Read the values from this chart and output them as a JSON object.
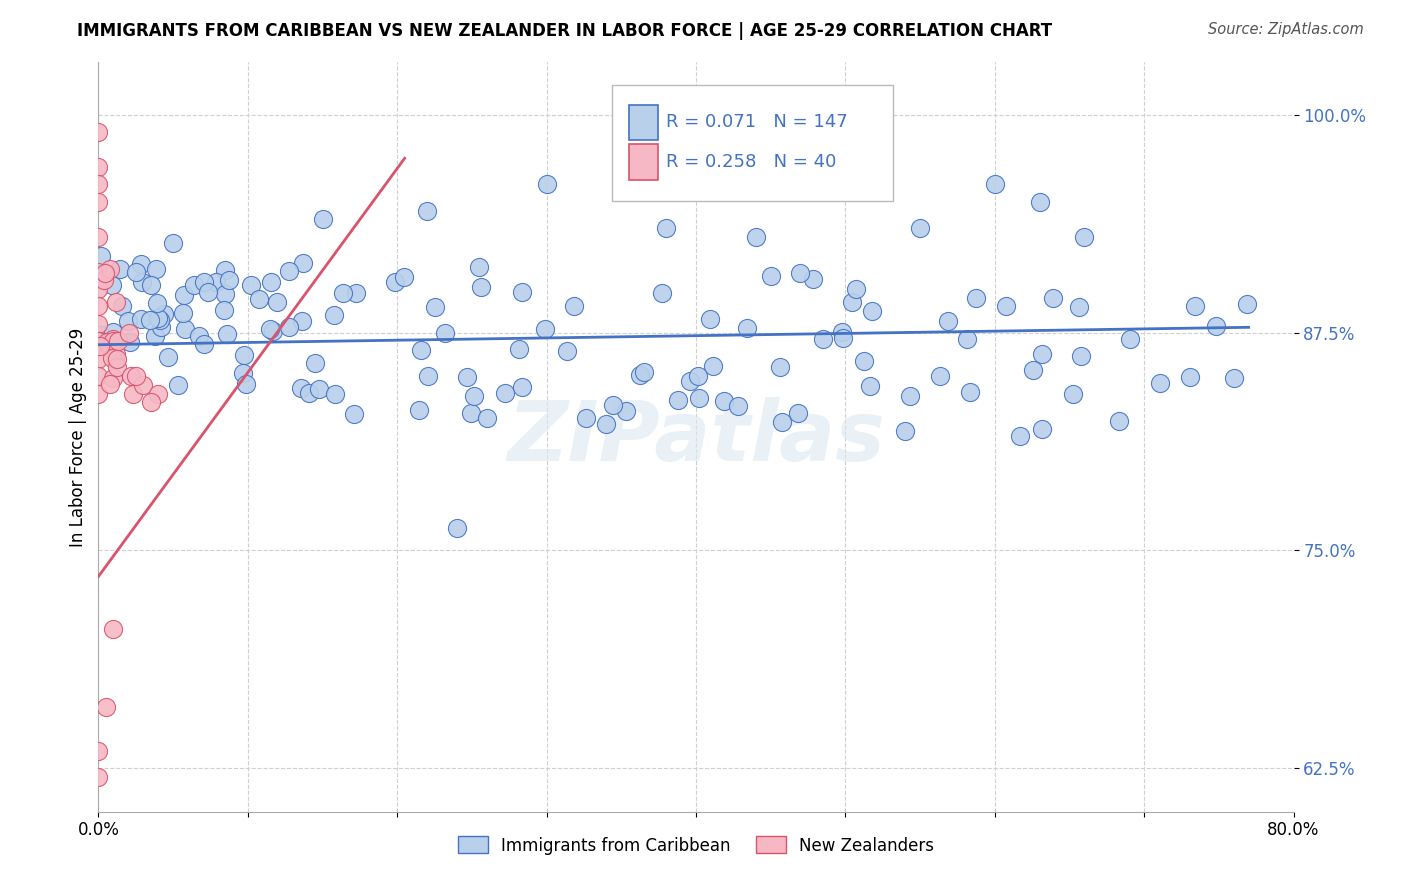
{
  "title": "IMMIGRANTS FROM CARIBBEAN VS NEW ZEALANDER IN LABOR FORCE | AGE 25-29 CORRELATION CHART",
  "source": "Source: ZipAtlas.com",
  "ylabel": "In Labor Force | Age 25-29",
  "xlim": [
    0.0,
    0.8
  ],
  "ylim": [
    0.6,
    1.03
  ],
  "yticks": [
    0.625,
    0.75,
    0.875,
    1.0
  ],
  "ytick_labels": [
    "62.5%",
    "75.0%",
    "87.5%",
    "100.0%"
  ],
  "xticks": [
    0.0,
    0.1,
    0.2,
    0.3,
    0.4,
    0.5,
    0.6,
    0.7,
    0.8
  ],
  "xtick_labels": [
    "0.0%",
    "",
    "",
    "",
    "",
    "",
    "",
    "",
    "80.0%"
  ],
  "blue_R": 0.071,
  "blue_N": 147,
  "pink_R": 0.258,
  "pink_N": 40,
  "blue_color": "#b8d0ea",
  "pink_color": "#f5b8c4",
  "line_blue": "#4472c4",
  "line_pink": "#d9536a",
  "watermark": "ZIPatlas",
  "blue_line_x0": 0.0,
  "blue_line_y0": 0.868,
  "blue_line_x1": 0.77,
  "blue_line_y1": 0.878,
  "pink_line_x0": 0.0,
  "pink_line_y0": 0.735,
  "pink_line_x1": 0.205,
  "pink_line_y1": 0.975
}
